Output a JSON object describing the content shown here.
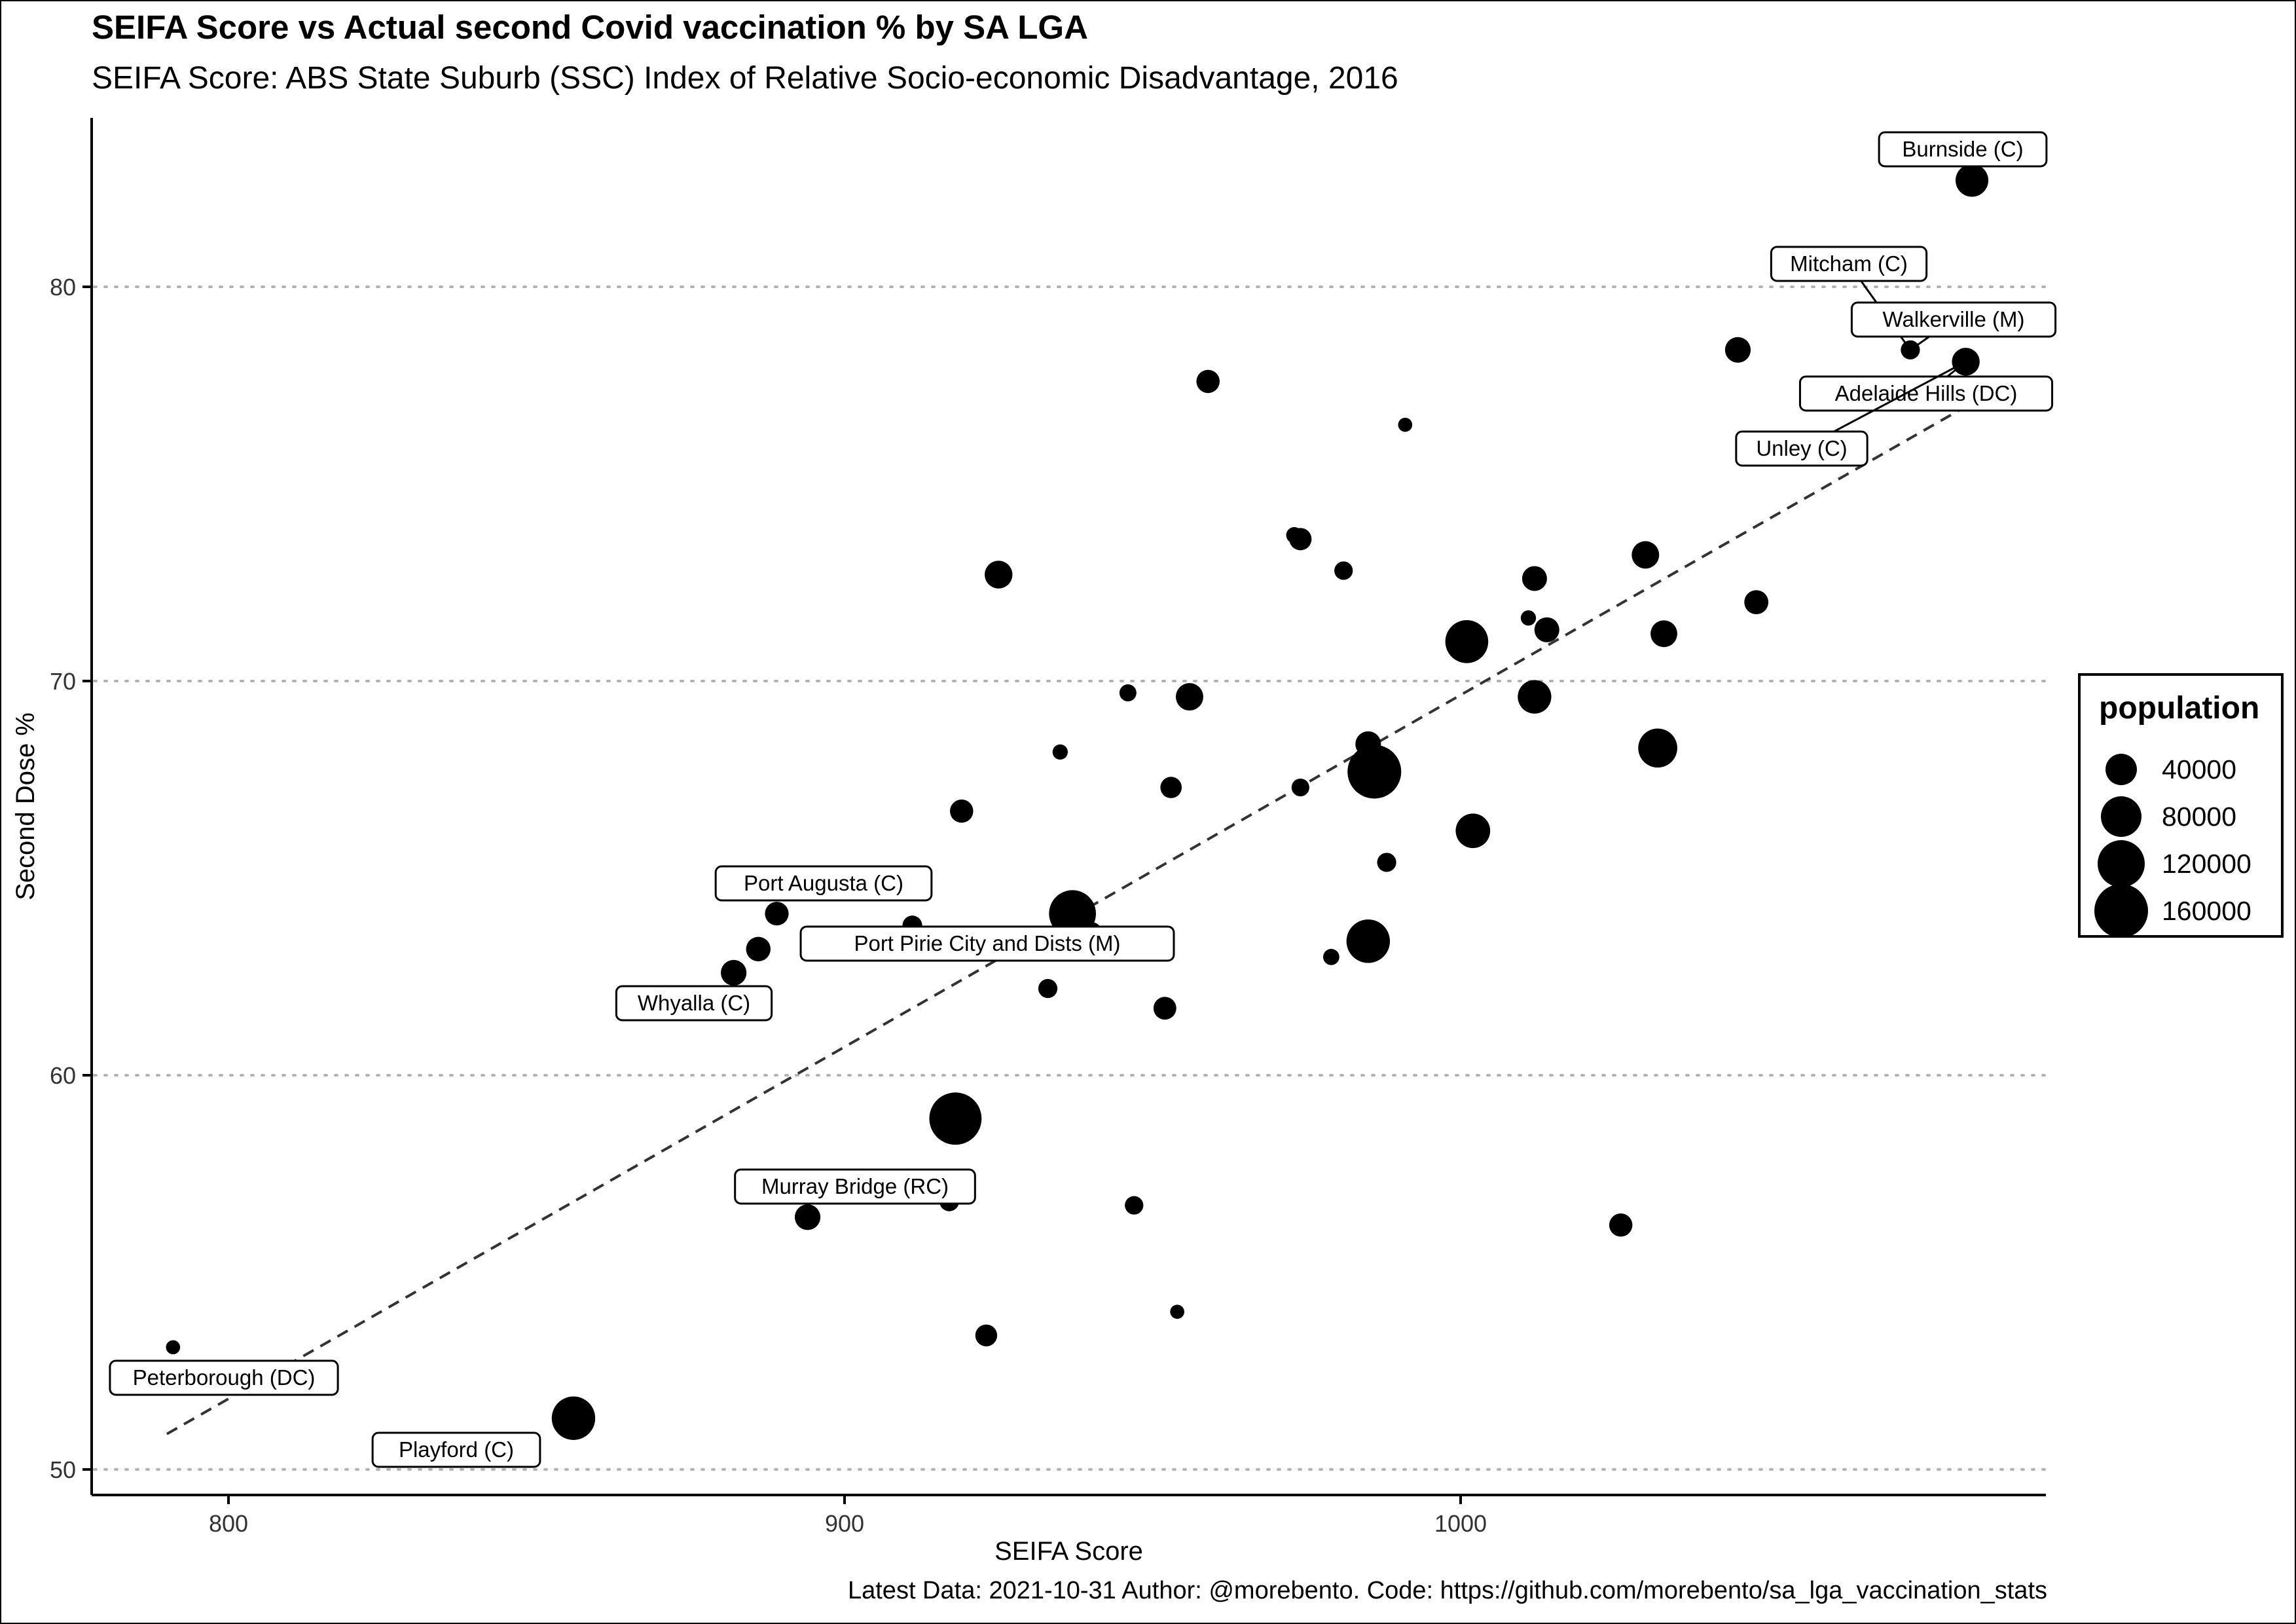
{
  "title": "SEIFA Score vs Actual second Covid vaccination % by SA LGA",
  "subtitle": "SEIFA Score: ABS State Suburb (SSC) Index of Relative Socio-economic Disadvantage, 2016",
  "caption": "Latest Data: 2021-10-31 Author: @morebento. Code: https://github.com/morebento/sa_lga_vaccination_stats",
  "legend": {
    "title": "population",
    "items": [
      {
        "label": "40000",
        "value": 40000
      },
      {
        "label": "80000",
        "value": 80000
      },
      {
        "label": "120000",
        "value": 120000
      },
      {
        "label": "160000",
        "value": 160000
      }
    ]
  },
  "colors": {
    "point": "#000000",
    "trend": "#333333",
    "grid": "#b3b3b3"
  },
  "chart_data": {
    "type": "scatter",
    "xlabel": "SEIFA Score",
    "ylabel": "Second Dose %",
    "xlim": [
      778,
      1095
    ],
    "ylim": [
      49.4,
      84.1
    ],
    "xticks": [
      800,
      900,
      1000
    ],
    "yticks": [
      50,
      60,
      70,
      80
    ],
    "grid": "horizontal-dotted",
    "legend_position": "right",
    "trend_line": {
      "style": "dashed",
      "from": [
        790,
        50.9
      ],
      "to": [
        1088,
        77.5
      ]
    },
    "points": [
      {
        "x": 1083,
        "y": 82.7,
        "pop": 45000
      },
      {
        "x": 1082,
        "y": 78.1,
        "pop": 28000
      },
      {
        "x": 1073,
        "y": 78.4,
        "pop": 8000
      },
      {
        "x": 1045,
        "y": 78.4,
        "pop": 22000
      },
      {
        "x": 1048,
        "y": 72.0,
        "pop": 18000
      },
      {
        "x": 1030,
        "y": 73.2,
        "pop": 27000
      },
      {
        "x": 1033,
        "y": 71.2,
        "pop": 25000
      },
      {
        "x": 1032,
        "y": 68.3,
        "pop": 72000
      },
      {
        "x": 1026,
        "y": 56.2,
        "pop": 16000
      },
      {
        "x": 1012,
        "y": 72.6,
        "pop": 20000
      },
      {
        "x": 1014,
        "y": 71.3,
        "pop": 20000
      },
      {
        "x": 1011,
        "y": 71.6,
        "pop": 3000
      },
      {
        "x": 1012,
        "y": 69.6,
        "pop": 48000
      },
      {
        "x": 1001,
        "y": 71.0,
        "pop": 92000
      },
      {
        "x": 1002,
        "y": 66.2,
        "pop": 52000
      },
      {
        "x": 991,
        "y": 76.5,
        "pop": 2000
      },
      {
        "x": 986,
        "y": 67.7,
        "pop": 160000
      },
      {
        "x": 985,
        "y": 68.4,
        "pop": 22000
      },
      {
        "x": 988,
        "y": 65.4,
        "pop": 8000
      },
      {
        "x": 985,
        "y": 63.4,
        "pop": 95000
      },
      {
        "x": 981,
        "y": 72.8,
        "pop": 7000
      },
      {
        "x": 979,
        "y": 63.0,
        "pop": 4000
      },
      {
        "x": 974,
        "y": 73.6,
        "pop": 14000
      },
      {
        "x": 973,
        "y": 73.7,
        "pop": 4000
      },
      {
        "x": 974,
        "y": 67.3,
        "pop": 6000
      },
      {
        "x": 959,
        "y": 77.6,
        "pop": 16000
      },
      {
        "x": 956,
        "y": 69.6,
        "pop": 27000
      },
      {
        "x": 953,
        "y": 67.3,
        "pop": 12000
      },
      {
        "x": 952,
        "y": 61.7,
        "pop": 15000
      },
      {
        "x": 954,
        "y": 54.0,
        "pop": 2000
      },
      {
        "x": 947,
        "y": 56.7,
        "pop": 7000
      },
      {
        "x": 946,
        "y": 69.7,
        "pop": 5000
      },
      {
        "x": 940,
        "y": 63.6,
        "pop": 15000
      },
      {
        "x": 937,
        "y": 64.1,
        "pop": 115000
      },
      {
        "x": 935,
        "y": 68.2,
        "pop": 3000
      },
      {
        "x": 933,
        "y": 62.2,
        "pop": 8000
      },
      {
        "x": 925,
        "y": 72.7,
        "pop": 28000
      },
      {
        "x": 923,
        "y": 53.4,
        "pop": 13000
      },
      {
        "x": 919,
        "y": 66.7,
        "pop": 16000
      },
      {
        "x": 918,
        "y": 58.9,
        "pop": 150000
      },
      {
        "x": 917,
        "y": 56.8,
        "pop": 9000
      },
      {
        "x": 911,
        "y": 63.8,
        "pop": 9000
      },
      {
        "x": 894,
        "y": 56.4,
        "pop": 22000
      },
      {
        "x": 889,
        "y": 64.1,
        "pop": 17000
      },
      {
        "x": 886,
        "y": 63.2,
        "pop": 19000
      },
      {
        "x": 882,
        "y": 62.6,
        "pop": 22000
      },
      {
        "x": 856,
        "y": 51.3,
        "pop": 95000
      },
      {
        "x": 791,
        "y": 53.1,
        "pop": 2000
      }
    ],
    "labels": [
      {
        "text": "Burnside (C)",
        "x": 1083,
        "y": 82.7
      },
      {
        "text": "Mitcham (C)",
        "x": 1073,
        "y": 78.4
      },
      {
        "text": "Walkerville (M)",
        "x": 1073,
        "y": 78.4
      },
      {
        "text": "Adelaide Hills (DC)",
        "x": 1082,
        "y": 78.1
      },
      {
        "text": "Unley (C)",
        "x": 1082,
        "y": 78.1
      },
      {
        "text": "Port Augusta (C)",
        "x": 889,
        "y": 64.1
      },
      {
        "text": "Port Pirie City and Dists (M)",
        "x": 911,
        "y": 63.8
      },
      {
        "text": "Whyalla (C)",
        "x": 882,
        "y": 62.6
      },
      {
        "text": "Murray Bridge (RC)",
        "x": 917,
        "y": 56.8
      },
      {
        "text": "Peterborough (DC)",
        "x": 791,
        "y": 53.1
      },
      {
        "text": "Playford (C)",
        "x": 856,
        "y": 51.3
      }
    ]
  }
}
